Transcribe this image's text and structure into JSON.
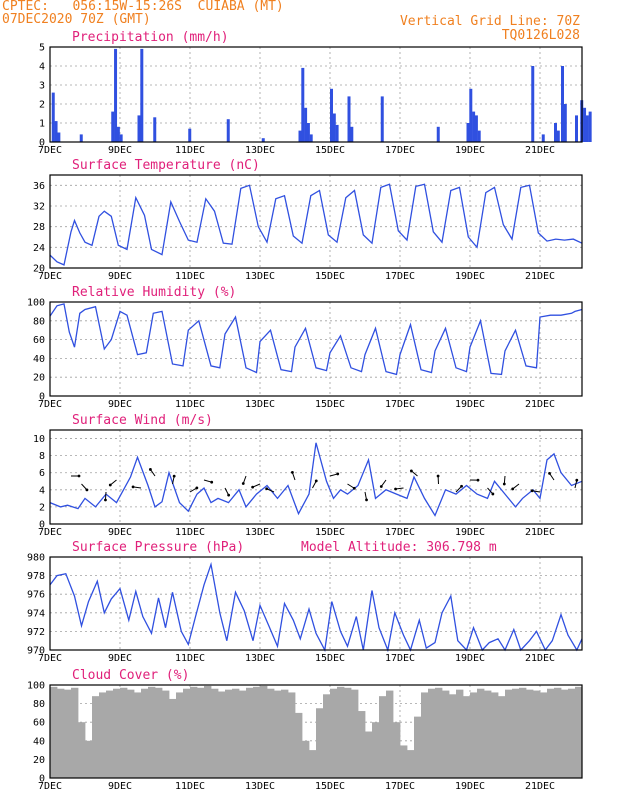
{
  "header": {
    "line1": "CPTEC:   056:15W-15:26S  CUIABA (MT)",
    "line2": "07DEC2020 70Z (GMT)",
    "vgrid": "Vertical Grid Line: 70Z",
    "code": "TQ0126L028"
  },
  "colors": {
    "line": "#3050e0",
    "bar": "#3050e0",
    "cloud": "#a8a8a8",
    "title": "#e0207a",
    "header": "#f08020"
  },
  "chart_data": [
    {
      "type": "bar",
      "title": "Precipitation (mm/h)",
      "x_labels": [
        "7DEC",
        "9DEC",
        "11DEC",
        "13DEC",
        "15DEC",
        "17DEC",
        "19DEC",
        "21DEC"
      ],
      "ylim": [
        0,
        5
      ],
      "yticks": [
        0,
        1,
        2,
        3,
        4,
        5
      ],
      "events": [
        {
          "day": 0.05,
          "values": [
            2.6,
            1.1,
            0.5
          ]
        },
        {
          "day": 0.85,
          "values": [
            0.4
          ]
        },
        {
          "day": 1.75,
          "values": [
            1.6,
            4.9,
            0.8,
            0.4
          ]
        },
        {
          "day": 2.5,
          "values": [
            1.4,
            4.9
          ]
        },
        {
          "day": 2.95,
          "values": [
            1.3
          ]
        },
        {
          "day": 3.95,
          "values": [
            0.7
          ]
        },
        {
          "day": 5.05,
          "values": [
            1.2
          ]
        },
        {
          "day": 6.05,
          "values": [
            0.2
          ]
        },
        {
          "day": 7.1,
          "values": [
            0.6,
            3.9,
            1.8,
            1.0,
            0.4
          ]
        },
        {
          "day": 8.0,
          "values": [
            2.8,
            1.5,
            0.9
          ]
        },
        {
          "day": 8.5,
          "values": [
            2.4,
            0.8
          ]
        },
        {
          "day": 9.45,
          "values": [
            2.4
          ]
        },
        {
          "day": 11.05,
          "values": [
            0.8
          ]
        },
        {
          "day": 11.9,
          "values": [
            1.0,
            2.8,
            1.6,
            1.4,
            0.6
          ]
        },
        {
          "day": 13.75,
          "values": [
            4.0
          ]
        },
        {
          "day": 14.05,
          "values": [
            0.4
          ]
        },
        {
          "day": 14.4,
          "values": [
            1.0,
            0.6
          ]
        },
        {
          "day": 14.6,
          "values": [
            4.0,
            2.0
          ]
        },
        {
          "day": 15.0,
          "values": [
            1.4
          ]
        },
        {
          "day": 15.15,
          "values": [
            2.2,
            1.8,
            1.4,
            1.6
          ]
        }
      ]
    },
    {
      "type": "line",
      "title": "Surface Temperature (nC)",
      "x_labels": [
        "7DEC",
        "9DEC",
        "11DEC",
        "13DEC",
        "15DEC",
        "17DEC",
        "19DEC",
        "21DEC"
      ],
      "ylim": [
        20,
        38
      ],
      "yticks": [
        20,
        24,
        28,
        32,
        36
      ],
      "x": [
        0,
        0.2,
        0.4,
        0.6,
        0.7,
        0.85,
        1.0,
        1.2,
        1.4,
        1.55,
        1.75,
        1.95,
        2.2,
        2.45,
        2.7,
        2.9,
        3.2,
        3.45,
        3.7,
        3.95,
        4.2,
        4.45,
        4.7,
        4.95,
        5.2,
        5.45,
        5.7,
        5.95,
        6.2,
        6.45,
        6.7,
        6.95,
        7.2,
        7.45,
        7.7,
        7.95,
        8.2,
        8.45,
        8.7,
        8.95,
        9.2,
        9.45,
        9.7,
        9.95,
        10.2,
        10.45,
        10.7,
        10.95,
        11.2,
        11.45,
        11.7,
        11.95,
        12.2,
        12.45,
        12.7,
        12.95,
        13.2,
        13.45,
        13.7,
        13.95,
        14.2,
        14.45,
        14.7,
        14.95,
        15.2
      ],
      "y": [
        22.5,
        21.2,
        20.6,
        27.0,
        29.2,
        26.8,
        25.0,
        24.4,
        30.0,
        31.0,
        30.0,
        24.4,
        23.6,
        33.6,
        30.2,
        23.6,
        22.6,
        32.8,
        29.0,
        25.4,
        25.0,
        33.4,
        31.0,
        24.8,
        24.6,
        35.4,
        36.0,
        28.0,
        25.0,
        33.4,
        34.0,
        26.2,
        24.8,
        34.0,
        35.0,
        26.4,
        25.0,
        33.6,
        35.0,
        26.4,
        24.8,
        35.6,
        36.2,
        27.2,
        25.4,
        35.8,
        36.2,
        27.0,
        25.0,
        35.0,
        35.6,
        26.0,
        24.0,
        34.6,
        35.6,
        28.4,
        25.6,
        35.6,
        36.0,
        26.8,
        25.2,
        25.6,
        25.4,
        25.6,
        24.8
      ]
    },
    {
      "type": "line",
      "title": "Relative Humidity (%)",
      "x_labels": [
        "7DEC",
        "9DEC",
        "11DEC",
        "13DEC",
        "15DEC",
        "17DEC",
        "19DEC",
        "21DEC"
      ],
      "ylim": [
        0,
        100
      ],
      "yticks": [
        0,
        20,
        40,
        60,
        80,
        100
      ],
      "x": [
        0,
        0.2,
        0.4,
        0.55,
        0.7,
        0.85,
        1.0,
        1.3,
        1.55,
        1.75,
        2.0,
        2.2,
        2.5,
        2.75,
        2.95,
        3.2,
        3.5,
        3.8,
        3.95,
        4.25,
        4.6,
        4.85,
        5.0,
        5.3,
        5.6,
        5.9,
        6.0,
        6.3,
        6.6,
        6.9,
        7.0,
        7.3,
        7.6,
        7.9,
        8.0,
        8.3,
        8.6,
        8.9,
        9.0,
        9.3,
        9.6,
        9.9,
        10.0,
        10.3,
        10.6,
        10.9,
        11.0,
        11.3,
        11.6,
        11.9,
        12.0,
        12.3,
        12.6,
        12.9,
        13.0,
        13.3,
        13.6,
        13.9,
        14.0,
        14.3,
        14.6,
        14.9,
        15.0,
        15.2
      ],
      "y": [
        85,
        96,
        98,
        68,
        52,
        88,
        92,
        95,
        50,
        60,
        90,
        86,
        44,
        46,
        88,
        90,
        34,
        32,
        70,
        80,
        32,
        30,
        66,
        84,
        30,
        25,
        58,
        70,
        28,
        26,
        52,
        72,
        30,
        27,
        46,
        64,
        30,
        26,
        44,
        72,
        26,
        23,
        44,
        76,
        28,
        25,
        48,
        72,
        30,
        26,
        52,
        80,
        24,
        23,
        48,
        70,
        32,
        30,
        84,
        86,
        86,
        88,
        90,
        92
      ]
    },
    {
      "type": "line",
      "title": "Surface Wind (m/s)",
      "x_labels": [
        "7DEC",
        "9DEC",
        "11DEC",
        "13DEC",
        "15DEC",
        "17DEC",
        "19DEC",
        "21DEC"
      ],
      "ylim": [
        0,
        11
      ],
      "yticks": [
        0,
        2,
        4,
        6,
        8,
        10
      ],
      "x": [
        0,
        0.3,
        0.5,
        0.8,
        1.0,
        1.3,
        1.6,
        1.9,
        2.1,
        2.3,
        2.5,
        2.8,
        3.0,
        3.2,
        3.4,
        3.7,
        3.95,
        4.2,
        4.4,
        4.6,
        4.8,
        5.1,
        5.4,
        5.6,
        5.9,
        6.2,
        6.5,
        6.8,
        7.1,
        7.4,
        7.6,
        7.9,
        8.1,
        8.3,
        8.5,
        8.8,
        9.1,
        9.3,
        9.6,
        9.9,
        10.2,
        10.4,
        10.7,
        11.0,
        11.3,
        11.6,
        11.9,
        12.2,
        12.5,
        12.7,
        13.0,
        13.3,
        13.5,
        13.8,
        14.0,
        14.2,
        14.4,
        14.6,
        14.9,
        15.2
      ],
      "y": [
        2.5,
        2.0,
        2.2,
        1.8,
        3.0,
        2.0,
        3.5,
        2.5,
        4.0,
        5.5,
        7.8,
        4.5,
        2.0,
        2.6,
        6.0,
        2.5,
        1.5,
        3.5,
        4.2,
        2.5,
        3.0,
        2.5,
        4.0,
        2.0,
        3.5,
        4.5,
        3.0,
        4.5,
        1.2,
        3.5,
        9.5,
        5.0,
        3.0,
        4.0,
        3.5,
        4.5,
        7.5,
        3.0,
        4.0,
        3.5,
        3.0,
        5.5,
        3.0,
        1.0,
        4.0,
        3.5,
        4.5,
        3.5,
        3.0,
        5.0,
        3.5,
        2.0,
        3.0,
        4.0,
        3.0,
        7.5,
        8.2,
        6.0,
        4.5,
        5.0
      ]
    },
    {
      "type": "line",
      "title": "Surface Pressure (hPa)",
      "annotation": "Model Altitude: 306.798 m",
      "x_labels": [
        "7DEC",
        "9DEC",
        "11DEC",
        "13DEC",
        "15DEC",
        "17DEC",
        "19DEC",
        "21DEC"
      ],
      "ylim": [
        970,
        980
      ],
      "yticks": [
        970,
        972,
        974,
        976,
        978,
        980
      ],
      "x": [
        0,
        0.2,
        0.45,
        0.7,
        0.9,
        1.1,
        1.35,
        1.55,
        1.75,
        2.0,
        2.25,
        2.45,
        2.65,
        2.9,
        3.1,
        3.3,
        3.5,
        3.75,
        3.95,
        4.15,
        4.4,
        4.6,
        4.85,
        5.05,
        5.3,
        5.55,
        5.8,
        6.0,
        6.25,
        6.5,
        6.7,
        6.95,
        7.15,
        7.4,
        7.6,
        7.85,
        8.05,
        8.3,
        8.5,
        8.75,
        8.95,
        9.2,
        9.4,
        9.65,
        9.85,
        10.1,
        10.3,
        10.55,
        10.75,
        11.0,
        11.2,
        11.45,
        11.65,
        11.9,
        12.1,
        12.35,
        12.55,
        12.8,
        13.0,
        13.25,
        13.45,
        13.7,
        13.9,
        14.15,
        14.35,
        14.6,
        14.8,
        15.05,
        15.2
      ],
      "y": [
        977.0,
        978.0,
        978.2,
        975.8,
        972.6,
        975.2,
        977.4,
        974.0,
        975.5,
        976.6,
        973.2,
        976.3,
        973.6,
        971.8,
        975.6,
        972.4,
        976.2,
        972.0,
        970.6,
        973.5,
        977.0,
        979.2,
        974.0,
        971.0,
        976.2,
        974.2,
        971.0,
        974.8,
        972.6,
        970.4,
        975.0,
        973.2,
        971.2,
        974.4,
        971.8,
        970.0,
        975.2,
        972.0,
        970.4,
        973.6,
        970.0,
        976.4,
        972.4,
        970.0,
        974.0,
        971.6,
        970.0,
        973.2,
        970.2,
        970.8,
        974.0,
        975.8,
        971.0,
        970.0,
        972.4,
        970.0,
        970.8,
        971.2,
        970.0,
        972.2,
        970.0,
        971.0,
        972.0,
        970.0,
        971.0,
        973.8,
        971.6,
        970.0,
        971.2
      ]
    },
    {
      "type": "bar",
      "title": "Cloud Cover (%)",
      "x_labels": [
        "7DEC",
        "9DEC",
        "11DEC",
        "13DEC",
        "15DEC",
        "17DEC",
        "19DEC",
        "21DEC"
      ],
      "ylim": [
        0,
        100
      ],
      "yticks": [
        0,
        20,
        40,
        60,
        80,
        100
      ],
      "x": [
        0,
        0.2,
        0.4,
        0.6,
        0.8,
        1.0,
        1.2,
        1.4,
        1.6,
        1.8,
        2.0,
        2.2,
        2.4,
        2.6,
        2.8,
        3.0,
        3.2,
        3.4,
        3.6,
        3.8,
        4.0,
        4.2,
        4.4,
        4.6,
        4.8,
        5.0,
        5.2,
        5.4,
        5.6,
        5.8,
        6.0,
        6.2,
        6.4,
        6.6,
        6.8,
        7.0,
        7.2,
        7.4,
        7.6,
        7.8,
        8.0,
        8.2,
        8.4,
        8.6,
        8.8,
        9.0,
        9.2,
        9.4,
        9.6,
        9.8,
        10.0,
        10.2,
        10.4,
        10.6,
        10.8,
        11.0,
        11.2,
        11.4,
        11.6,
        11.8,
        12.0,
        12.2,
        12.4,
        12.6,
        12.8,
        13.0,
        13.2,
        13.4,
        13.6,
        13.8,
        14.0,
        14.2,
        14.4,
        14.6,
        14.8,
        15.0
      ],
      "values": [
        98,
        96,
        95,
        97,
        60,
        40,
        88,
        92,
        94,
        96,
        97,
        95,
        92,
        96,
        98,
        97,
        94,
        85,
        92,
        96,
        98,
        97,
        99,
        96,
        93,
        95,
        96,
        94,
        97,
        98,
        99,
        96,
        94,
        95,
        92,
        70,
        40,
        30,
        75,
        90,
        96,
        98,
        97,
        95,
        72,
        50,
        60,
        88,
        94,
        60,
        35,
        30,
        66,
        92,
        96,
        97,
        94,
        90,
        95,
        88,
        92,
        96,
        94,
        92,
        88,
        95,
        96,
        97,
        95,
        94,
        92,
        96,
        97,
        95,
        96,
        98
      ]
    }
  ]
}
